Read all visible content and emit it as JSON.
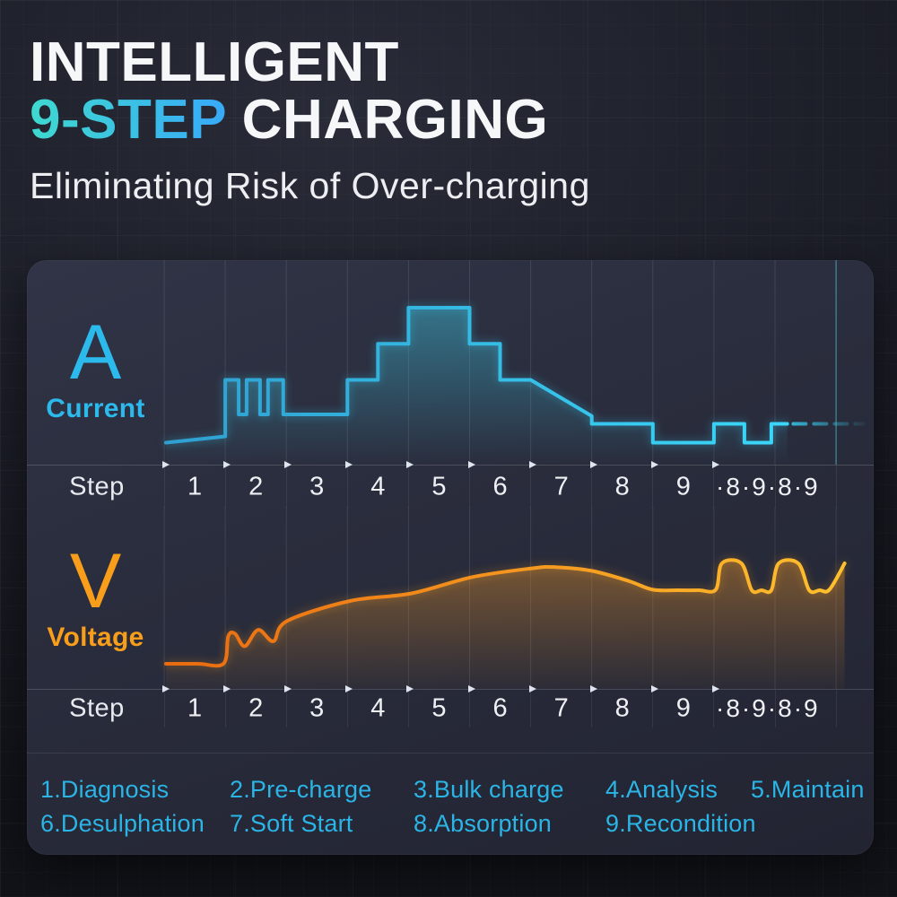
{
  "header": {
    "title_line1": "INTELLIGENT",
    "title_accent": "9-STEP",
    "title_rest": " CHARGING",
    "subtitle": "Eliminating Risk of Over-charging"
  },
  "panel": {
    "current": {
      "unit": "A",
      "label": "Current"
    },
    "voltage": {
      "unit": "V",
      "label": "Voltage"
    },
    "axis": {
      "label": "Step",
      "cells": [
        "1",
        "2",
        "3",
        "4",
        "5",
        "6",
        "7",
        "8",
        "9",
        "·8·9·8·9"
      ]
    }
  },
  "legend": {
    "row1": [
      "1.Diagnosis",
      "2.Pre-charge",
      "3.Bulk charge",
      "4.Analysis",
      "5.Maintain"
    ],
    "row2": [
      "6.Desulphation",
      "7.Soft Start",
      "8.Absorption",
      "9.Recondition"
    ]
  },
  "colors": {
    "title_text": "#f6f7f9",
    "accent_gradient_start": "#3fd9cf",
    "accent_gradient_end": "#38a9f8",
    "current_line_start": "#2f9fd0",
    "current_line_end": "#3bd8fa",
    "current_fill": "#3ecbe8",
    "voltage_line_start": "#e96a10",
    "voltage_line_end": "#ffc02e",
    "voltage_fill": "#f59a28",
    "legend_text": "#2bb5e6",
    "cyan_label": "#2cb9ec",
    "orange_label": "#f89e1b"
  },
  "chart_data": [
    {
      "type": "line",
      "name": "Current",
      "unit": "A",
      "style": "step",
      "xlabel": "Step",
      "x_unit": "charging step (0 = start of step 1; >9 = repeating 8/9 maintenance cycle)",
      "y_unit": "relative current amplitude (0-1, unlabeled axis)",
      "x_ticks": [
        "1",
        "2",
        "3",
        "4",
        "5",
        "6",
        "7",
        "8",
        "9",
        "·8·9·8·9"
      ],
      "points": [
        [
          0.03,
          0.14
        ],
        [
          1.0,
          0.18
        ],
        [
          1.0,
          0.54
        ],
        [
          1.22,
          0.54
        ],
        [
          1.22,
          0.32
        ],
        [
          1.35,
          0.32
        ],
        [
          1.35,
          0.54
        ],
        [
          1.57,
          0.54
        ],
        [
          1.57,
          0.32
        ],
        [
          1.7,
          0.32
        ],
        [
          1.7,
          0.54
        ],
        [
          1.95,
          0.54
        ],
        [
          1.95,
          0.32
        ],
        [
          3.0,
          0.32
        ],
        [
          3.0,
          0.54
        ],
        [
          3.5,
          0.54
        ],
        [
          3.5,
          0.77
        ],
        [
          4.0,
          0.77
        ],
        [
          4.0,
          1.0
        ],
        [
          5.0,
          1.0
        ],
        [
          5.0,
          0.77
        ],
        [
          5.5,
          0.77
        ],
        [
          5.5,
          0.54
        ],
        [
          6.0,
          0.54
        ],
        [
          7.0,
          0.31
        ],
        [
          7.0,
          0.26
        ],
        [
          8.0,
          0.26
        ],
        [
          8.0,
          0.14
        ],
        [
          9.0,
          0.14
        ],
        [
          9.0,
          0.26
        ],
        [
          9.5,
          0.26
        ],
        [
          9.5,
          0.14
        ],
        [
          9.94,
          0.14
        ],
        [
          9.94,
          0.26
        ],
        [
          10.2,
          0.26
        ]
      ],
      "dashed_continuation": [
        [
          10.3,
          0.26
        ],
        [
          11.45,
          0.26
        ]
      ],
      "marker_line_x": 11,
      "grid": true,
      "legend_position": "left"
    },
    {
      "type": "line",
      "name": "Voltage",
      "unit": "V",
      "style": "smooth",
      "xlabel": "Step",
      "x_unit": "charging step (0 = start of step 1; >9 = repeating 8/9 maintenance cycle)",
      "y_unit": "relative voltage amplitude (0-1, unlabeled axis)",
      "x_ticks": [
        "1",
        "2",
        "3",
        "4",
        "5",
        "6",
        "7",
        "8",
        "9",
        "·8·9·8·9"
      ],
      "points": [
        [
          0.03,
          0.2
        ],
        [
          0.55,
          0.2
        ],
        [
          0.97,
          0.2
        ],
        [
          1.05,
          0.42
        ],
        [
          1.16,
          0.44
        ],
        [
          1.32,
          0.34
        ],
        [
          1.54,
          0.47
        ],
        [
          1.79,
          0.38
        ],
        [
          2.01,
          0.54
        ],
        [
          3.04,
          0.7
        ],
        [
          4.04,
          0.76
        ],
        [
          5.04,
          0.89
        ],
        [
          6.02,
          0.96
        ],
        [
          6.4,
          0.97
        ],
        [
          7.0,
          0.94
        ],
        [
          7.6,
          0.86
        ],
        [
          8.0,
          0.79
        ],
        [
          8.4,
          0.786
        ],
        [
          8.75,
          0.786
        ],
        [
          9.03,
          0.79
        ],
        [
          9.13,
          1.0
        ],
        [
          9.45,
          1.0
        ],
        [
          9.62,
          0.786
        ],
        [
          9.78,
          0.786
        ],
        [
          9.94,
          0.786
        ],
        [
          10.06,
          1.0
        ],
        [
          10.38,
          1.0
        ],
        [
          10.56,
          0.786
        ],
        [
          10.73,
          0.786
        ],
        [
          10.89,
          0.79
        ],
        [
          11.14,
          1.0
        ]
      ],
      "grid": true,
      "legend_position": "left"
    }
  ]
}
